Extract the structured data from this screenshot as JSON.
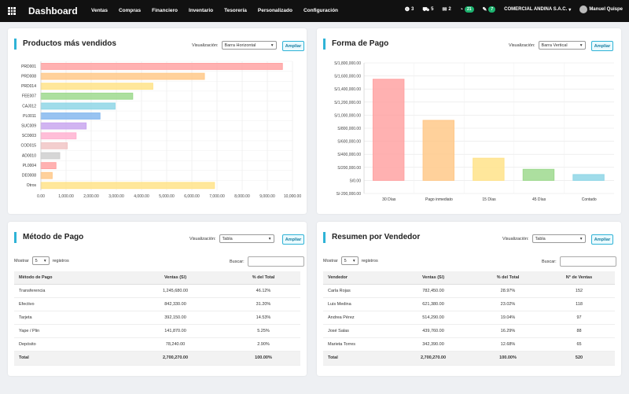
{
  "topbar": {
    "brand": "Dashboard",
    "nav": [
      "Ventas",
      "Compras",
      "Financiero",
      "Inventario",
      "Tesorería",
      "Personalizado",
      "Configuración"
    ],
    "indicators": [
      {
        "icon": "alert-icon",
        "glyph": "❶",
        "count": "3"
      },
      {
        "icon": "cart-icon",
        "glyph": "⛟",
        "count": "5"
      },
      {
        "icon": "mail-icon",
        "glyph": "✉",
        "count": "2"
      },
      {
        "icon": "clock-icon",
        "glyph": "◔",
        "count": "21"
      },
      {
        "icon": "chat-icon",
        "glyph": "✎",
        "count": "7"
      }
    ],
    "company": "COMERCIAL ANDINA S.A.C.",
    "user": "Manuel Quispe"
  },
  "cards": {
    "productos": {
      "title": "Productos más vendidos",
      "vis_label": "Visualización:",
      "vis_value": "Barra Horizontal",
      "ampliar": "Ampliar"
    },
    "forma_pago": {
      "title": "Forma de Pago",
      "vis_label": "Visualización:",
      "vis_value": "Barra Vertical",
      "ampliar": "Ampliar"
    },
    "metodo_pago": {
      "title": "Método de Pago",
      "vis_label": "Visualización:",
      "vis_value": "Tabla",
      "ampliar": "Ampliar",
      "show_label": "Mostrar",
      "show_value": "5",
      "records_label": "registros",
      "search_label": "Buscar:",
      "headers": [
        "Método de Pago",
        "Ventas (S/)",
        "% del Total"
      ],
      "rows": [
        [
          "Transferencia",
          "1,245,680.00",
          "46.12%"
        ],
        [
          "Efectivo",
          "842,330.00",
          "31.20%"
        ],
        [
          "Tarjeta",
          "392,150.00",
          "14.53%"
        ],
        [
          "Yape / Plin",
          "141,870.00",
          "5.25%"
        ],
        [
          "Depósito",
          "78,240.00",
          "2.90%"
        ]
      ],
      "total": [
        "Total",
        "2,700,270.00",
        "100.00%"
      ]
    },
    "vendedor": {
      "title": "Resumen por Vendedor",
      "vis_label": "Visualización:",
      "vis_value": "Tabla",
      "ampliar": "Ampliar",
      "show_label": "Mostrar",
      "show_value": "5",
      "records_label": "registros",
      "search_label": "Buscar:",
      "headers": [
        "Vendedor",
        "Ventas (S/)",
        "% del Total",
        "N° de Ventas"
      ],
      "rows": [
        [
          "Carla Rojas",
          "782,450.00",
          "28.97%",
          "152"
        ],
        [
          "Luis Medina",
          "621,380.00",
          "23.02%",
          "118"
        ],
        [
          "Andrea Pérez",
          "514,290.00",
          "19.04%",
          "97"
        ],
        [
          "José Salas",
          "439,760.00",
          "16.29%",
          "88"
        ],
        [
          "Marieta Torres",
          "342,390.00",
          "12.68%",
          "65"
        ]
      ],
      "total": [
        "Total",
        "2,700,270.00",
        "100.00%",
        "520"
      ]
    }
  },
  "chart_data": [
    {
      "type": "bar",
      "orientation": "horizontal",
      "categories": [
        "PRD001",
        "PRD008",
        "PRD014",
        "FEE007",
        "CAJ012",
        "PL0011",
        "SUC009",
        "SC0003",
        "COD015",
        "AD0010",
        "PL0004",
        "DE0008",
        "Otros"
      ],
      "values": [
        9600,
        6500,
        4450,
        3650,
        2950,
        2350,
        1800,
        1400,
        1050,
        750,
        600,
        450,
        6900
      ],
      "colors": [
        "#ffa3a3",
        "#ffc98a",
        "#ffe38a",
        "#9ed98e",
        "#8fd6e6",
        "#86b9ef",
        "#c9a7ef",
        "#ffb3d1",
        "#f1c6c6",
        "#cfcfcf",
        "#ffa3a3",
        "#ffc98a",
        "#ffe38a"
      ],
      "xlim": [
        0,
        10000
      ],
      "xticks": [
        "0.00",
        "1,000.00",
        "2,000.00",
        "3,000.00",
        "4,000.00",
        "5,000.00",
        "6,000.00",
        "7,000.00",
        "8,000.00",
        "9,000.00",
        "10,000.00"
      ],
      "grid": true
    },
    {
      "type": "bar",
      "orientation": "vertical",
      "categories": [
        "30 Días",
        "Pago inmediato",
        "15 Días",
        "45 Días",
        "Contado"
      ],
      "values": [
        1550000,
        920000,
        340000,
        170000,
        90000
      ],
      "colors": [
        "#ffa3a3",
        "#ffc98a",
        "#ffe38a",
        "#9ed98e",
        "#8fd6e6"
      ],
      "ylim": [
        -200000,
        1800000
      ],
      "yticks": [
        "S/-200,000.00",
        "S/0.00",
        "S/200,000.00",
        "S/400,000.00",
        "S/600,000.00",
        "S/800,000.00",
        "S/1,000,000.00",
        "S/1,200,000.00",
        "S/1,400,000.00",
        "S/1,600,000.00",
        "S/1,800,000.00"
      ],
      "grid": true
    }
  ]
}
